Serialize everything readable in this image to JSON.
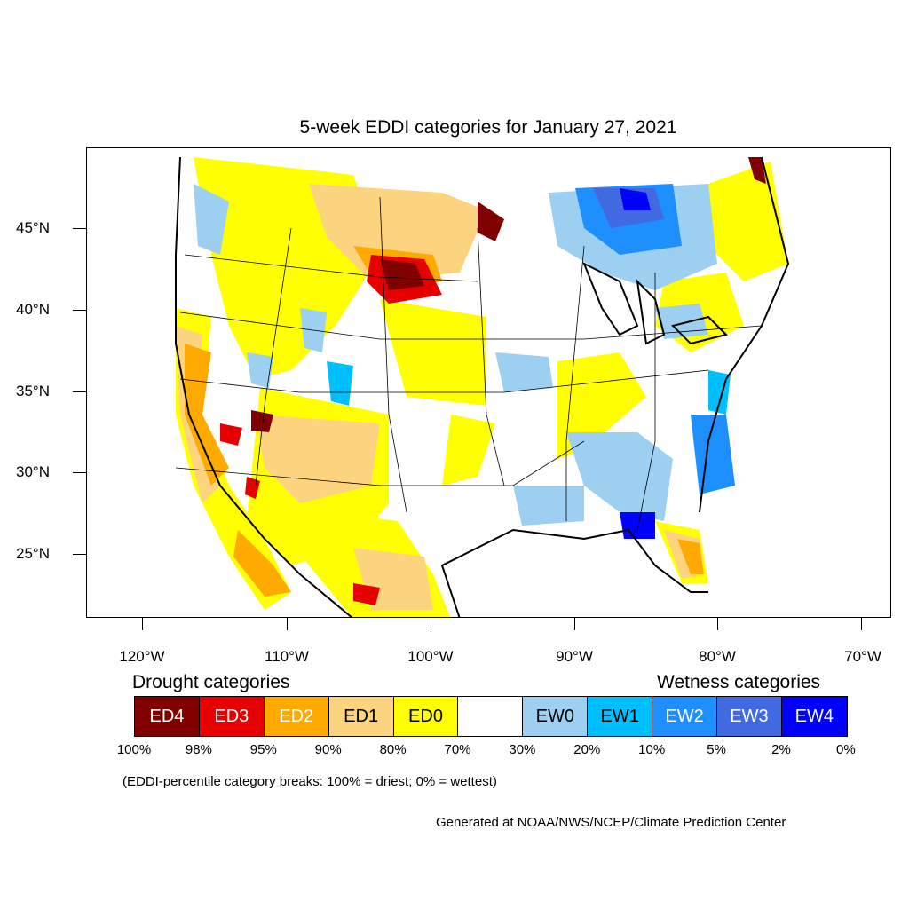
{
  "title": "5-week EDDI categories for January 27, 2021",
  "lat_labels": [
    "45°N",
    "40°N",
    "35°N",
    "30°N",
    "25°N"
  ],
  "lon_labels": [
    "120°W",
    "110°W",
    "100°W",
    "90°W",
    "80°W",
    "70°W"
  ],
  "legend": {
    "drought_heading": "Drought categories",
    "wetness_heading": "Wetness categories",
    "categories": [
      {
        "label": "ED4",
        "color": "#800000",
        "text_color": "#ffffff"
      },
      {
        "label": "ED3",
        "color": "#e60000",
        "text_color": "#ffffff"
      },
      {
        "label": "ED2",
        "color": "#ffaa00",
        "text_color": "#ffffff"
      },
      {
        "label": "ED1",
        "color": "#fcd37f",
        "text_color": "#000000"
      },
      {
        "label": "ED0",
        "color": "#ffff00",
        "text_color": "#000000"
      },
      {
        "label": "",
        "color": "#ffffff",
        "text_color": "#000000"
      },
      {
        "label": "EW0",
        "color": "#9ccff0",
        "text_color": "#000000"
      },
      {
        "label": "EW1",
        "color": "#00bfff",
        "text_color": "#000000"
      },
      {
        "label": "EW2",
        "color": "#1e8fff",
        "text_color": "#ffffff"
      },
      {
        "label": "EW3",
        "color": "#4169e1",
        "text_color": "#ffffff"
      },
      {
        "label": "EW4",
        "color": "#0000ff",
        "text_color": "#ffffff"
      }
    ],
    "breaks": [
      "100%",
      "98%",
      "95%",
      "90%",
      "80%",
      "70%",
      "30%",
      "20%",
      "10%",
      "5%",
      "2%",
      "0%"
    ]
  },
  "note": "(EDDI-percentile category breaks: 100% = driest; 0% = wettest)",
  "credit": "Generated at NOAA/NWS/NCEP/Climate Prediction Center"
}
